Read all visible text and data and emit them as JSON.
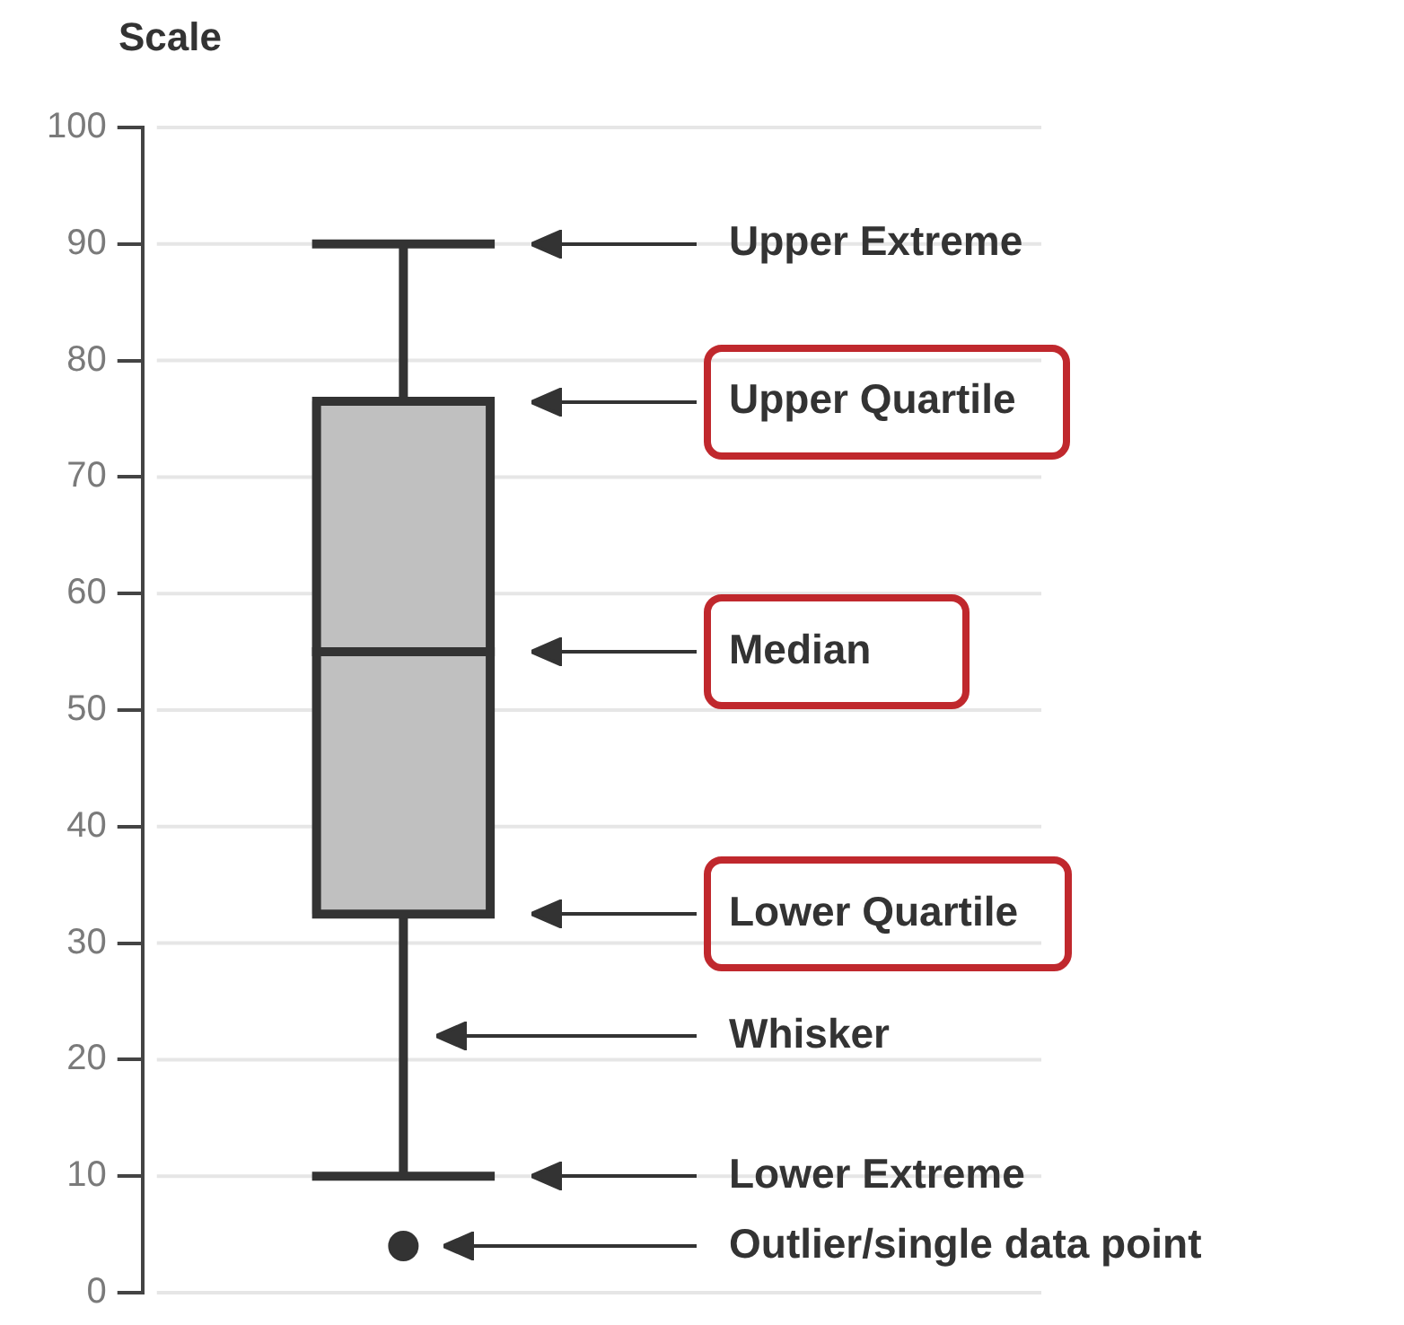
{
  "chart_data": {
    "type": "box",
    "ylabel": "Scale",
    "categories": [
      null
    ],
    "color": "#c0c0c0",
    "boxes": [
      {
        "low": 10,
        "q1": 32.5,
        "median": 55,
        "q3": 76.5,
        "high": 90,
        "outliers": [
          4
        ]
      }
    ],
    "ylim": [
      0,
      100
    ],
    "yticks": [
      0,
      10,
      20,
      30,
      40,
      50,
      60,
      70,
      80,
      90,
      100
    ],
    "grid": "y",
    "annotations": [
      "Upper Extreme",
      "Upper Quartile",
      "Median",
      "Lower Quartile",
      "Whisker",
      "Lower Extreme",
      "Outlier/single data point"
    ]
  }
}
